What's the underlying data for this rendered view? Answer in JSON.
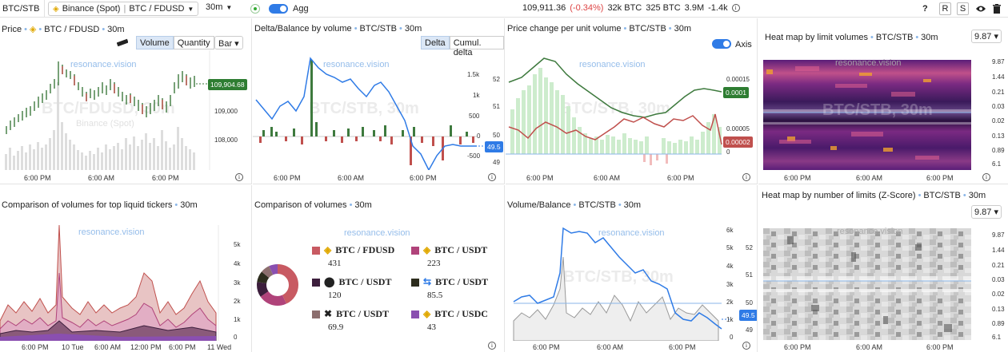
{
  "topbar": {
    "symbol": "BTC/STB",
    "exchange": "Binance (Spot)",
    "pair": "BTC / FDUSD",
    "timeframe": "30m",
    "agg_label": "Agg",
    "price": "109,911.36",
    "change": "(-0.34%)",
    "vol_btc1": "32k BTC",
    "vol_btc2": "325 BTC",
    "vol_usd": "3.9M",
    "delta": "-1.4k",
    "help": "?",
    "btn_r": "R",
    "btn_s": "S"
  },
  "watermark": "resonance.vision",
  "price_panel": {
    "title": "Price",
    "pair": "BTC / FDUSD",
    "tf": "30m",
    "btn_volume": "Volume",
    "btn_quantity": "Quantity",
    "chart_type": "Bar",
    "bigwm": "BTC/FDUSD, 30m",
    "subwm": "Binance (Spot)",
    "last": "109,904.68",
    "y_ticks": [
      "109,000",
      "108,000"
    ],
    "x_ticks": [
      "6:00 PM",
      "6:00 AM",
      "6:00 PM"
    ]
  },
  "delta_panel": {
    "title": "Delta/Balance by volume",
    "pair": "BTC/STB",
    "tf": "30m",
    "btn_delta": "Delta",
    "btn_cumul": "Cumul. delta",
    "bigwm": "BTC/STB, 30m",
    "y_left": [
      "1.5k",
      "1k",
      "500",
      "0",
      "-500"
    ],
    "y_right": [
      "52",
      "51",
      "50",
      "49"
    ],
    "last": "49.5",
    "x_ticks": [
      "6:00 PM",
      "6:00 AM",
      "6:00 PM"
    ]
  },
  "pcuv_panel": {
    "title": "Price change per unit volume",
    "pair": "BTC/STB",
    "tf": "30m",
    "axis_label": "Axis",
    "bigwm": "BTC/STB, 30m",
    "y_right": [
      "0.00015",
      "0.0001",
      "0.00005",
      "0"
    ],
    "last_green": "0.0001",
    "last_red": "0.00002",
    "x_ticks": [
      "6:00 PM",
      "6:00 AM",
      "6:00 PM"
    ]
  },
  "heat1_panel": {
    "title": "Heat map by limit volumes",
    "pair": "BTC/STB",
    "tf": "30m",
    "select": "9.87",
    "bigwm": "BTC/STB, 30m",
    "y_right": [
      "9.87",
      "1.44",
      "0.21",
      "0.03",
      "0.02",
      "0.13",
      "0.89",
      "6.1"
    ],
    "x_ticks": [
      "6:00 PM",
      "6:00 AM",
      "6:00 PM"
    ]
  },
  "comp_panel": {
    "title": "Comparison of volumes for top liquid tickers",
    "tf": "30m",
    "y_right": [
      "5k",
      "4k",
      "3k",
      "2k",
      "1k",
      "0"
    ],
    "x_ticks": [
      "6:00 PM",
      "10 Tue",
      "6:00 AM",
      "12:00 PM",
      "6:00 PM",
      "11 Wed"
    ]
  },
  "cv_panel": {
    "title": "Comparison of volumes",
    "tf": "30m",
    "items": [
      {
        "label": "BTC / FDUSD",
        "value": "431",
        "color": "#c85a62"
      },
      {
        "label": "BTC / USDT",
        "value": "223",
        "color": "#b0437a"
      },
      {
        "label": "BTC / USDT",
        "value": "120",
        "color": "#3c1e3c"
      },
      {
        "label": "BTC / USDT",
        "value": "85.5",
        "color": "#2d2d1e"
      },
      {
        "label": "BTC / USDT",
        "value": "69.9",
        "color": "#8c6e6e"
      },
      {
        "label": "BTC / USDC",
        "value": "43",
        "color": "#8a4fb0"
      }
    ]
  },
  "vb_panel": {
    "title": "Volume/Balance",
    "pair": "BTC/STB",
    "tf": "30m",
    "bigwm": "BTC/STB, 30m",
    "y_left": [
      "6k",
      "5k",
      "4k",
      "3k",
      "2k",
      "1k",
      "0"
    ],
    "y_right": [
      "52",
      "51",
      "50",
      "49"
    ],
    "last": "49.5",
    "x_ticks": [
      "6:00 PM",
      "6:00 AM",
      "6:00 PM"
    ]
  },
  "heat2_panel": {
    "title": "Heat map by number of limits (Z-Score)",
    "pair": "BTC/STB",
    "tf": "30m",
    "select": "9.87",
    "y_right": [
      "9.87",
      "1.44",
      "0.21",
      "0.03",
      "0.02",
      "0.13",
      "0.89",
      "6.1"
    ],
    "x_ticks": [
      "6:00 PM",
      "6:00 AM",
      "6:00 PM"
    ]
  },
  "colors": {
    "accent": "#2f7be6",
    "green": "#3e7a3e",
    "red": "#c0504d",
    "watermark": "#8ab6e8"
  }
}
